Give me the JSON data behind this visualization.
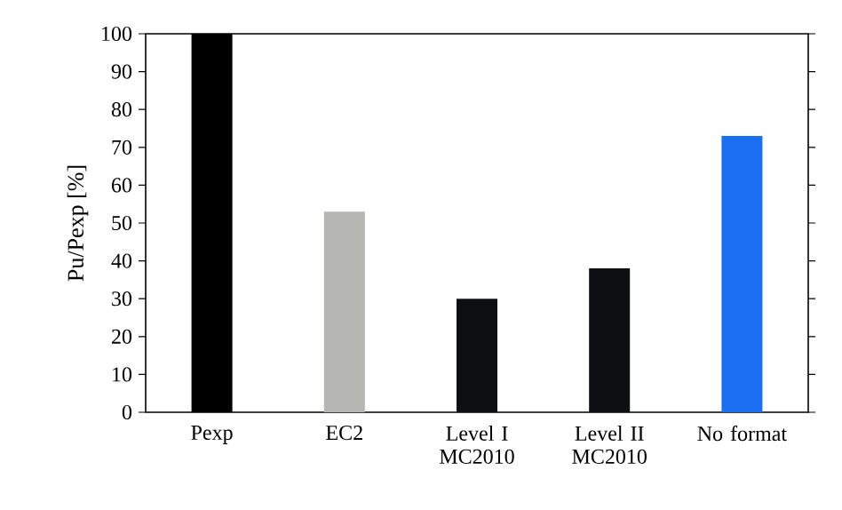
{
  "chart_data": {
    "type": "bar",
    "ylabel": "Pu/Pexp [%]",
    "categories": [
      "Pexp",
      "EC2",
      "Level I MC2010",
      "Level II MC2010",
      "No format"
    ],
    "values": [
      100,
      53,
      30,
      38,
      73
    ],
    "colors": [
      "#000000",
      "#b5b5b1",
      "#0d0f12",
      "#0d0f12",
      "#1a6ef0"
    ],
    "ylim": [
      0,
      100
    ],
    "yticks": [
      0,
      10,
      20,
      30,
      40,
      50,
      60,
      70,
      80,
      90,
      100
    ],
    "grid": false
  }
}
